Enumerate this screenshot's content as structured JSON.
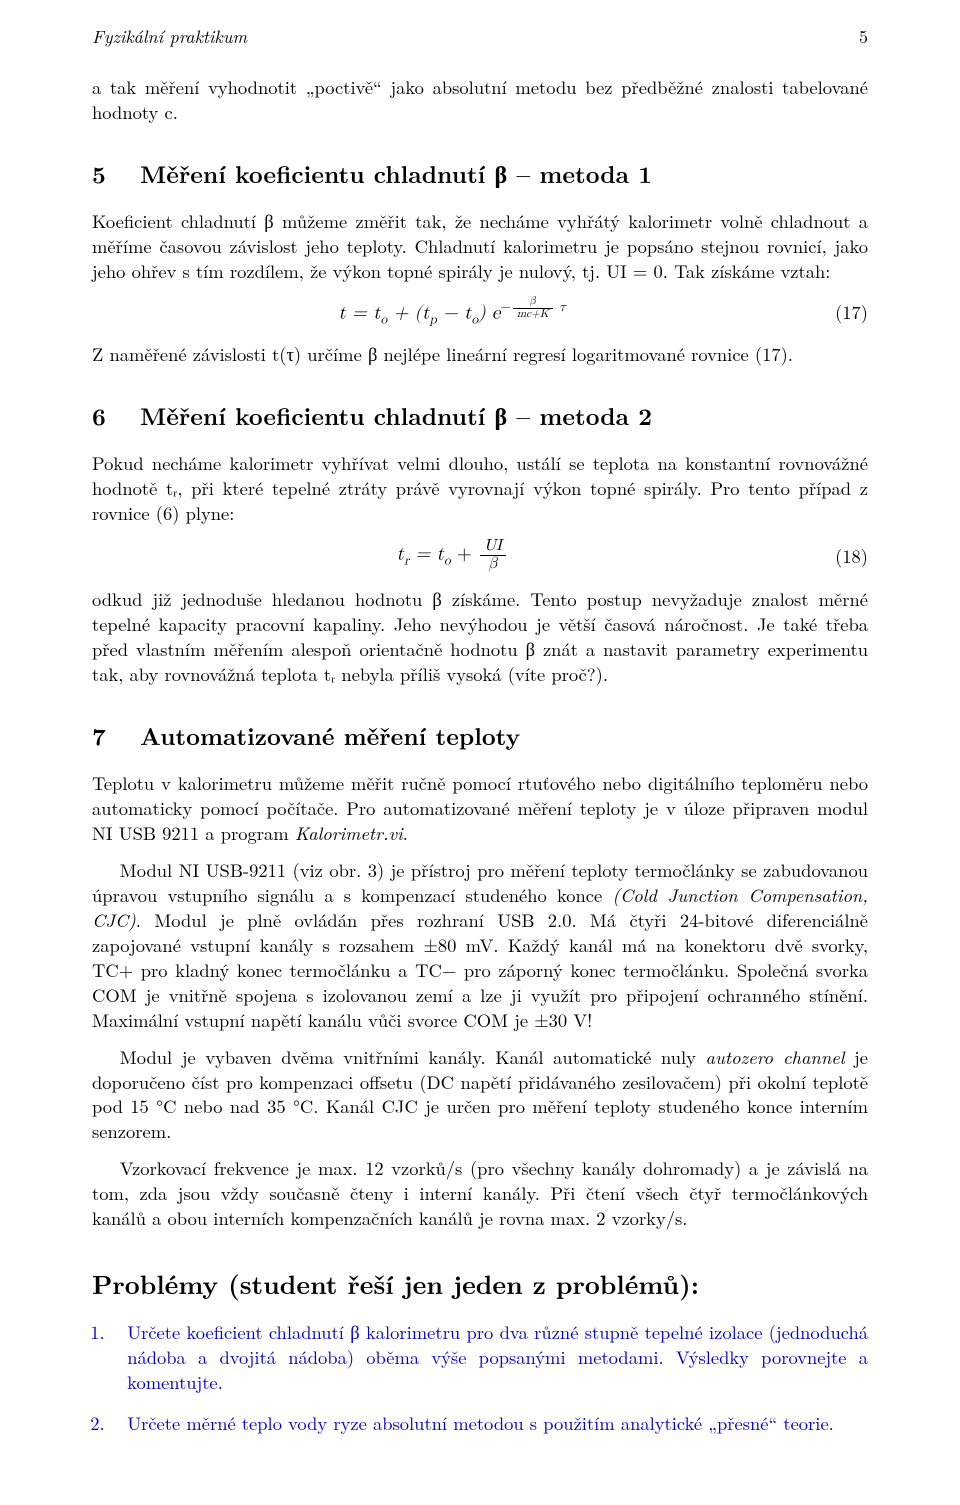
{
  "header": {
    "running_title": "Fyzikální praktikum",
    "page_number": "5"
  },
  "para_top": "a tak měření vyhodnotit „poctivě“ jako absolutní metodu bez předběžné znalosti tabelované hodnoty c.",
  "sec5": {
    "num": "5",
    "title": "Měření koeficientu chladnutí β – metoda 1",
    "p1": "Koeficient chladnutí β můžeme změřit tak, že necháme vyhřátý kalorimetr volně chladnout a měříme časovou závislost jeho teploty. Chladnutí kalorimetru je popsáno stejnou rovnicí, jako jeho ohřev s tím rozdílem, že výkon topné spirály je nulový, tj. UI = 0. Tak získáme vztah:",
    "eq17_label": "(17)",
    "eq17_lhs": "t = t",
    "eq17_sub1": "o",
    "eq17_mid1": " + (t",
    "eq17_sub2": "p",
    "eq17_mid2": " − t",
    "eq17_sub3": "o",
    "eq17_mid3": ") e",
    "eq17_exp_top": "β",
    "eq17_exp_bot": "mc+K",
    "eq17_exp_tail": " τ",
    "p2": "Z naměřené závislosti t(τ) určíme β nejlépe lineární regresí logaritmované rovnice (17)."
  },
  "sec6": {
    "num": "6",
    "title": "Měření koeficientu chladnutí β – metoda 2",
    "p1": "Pokud necháme kalorimetr vyhřívat velmi dlouho, ustálí se teplota na konstantní rovnovážné hodnotě tᵣ, při které tepelné ztráty právě vyrovnají výkon topné spirály. Pro tento případ z rovnice (6) plyne:",
    "eq18_label": "(18)",
    "eq18_lhs": "t",
    "eq18_sub1": "r",
    "eq18_mid1": " = t",
    "eq18_sub2": "o",
    "eq18_mid2": " + ",
    "eq18_frac_top": "UI",
    "eq18_frac_bot": "β",
    "p2": "odkud již jednoduše hledanou hodnotu β získáme. Tento postup nevyžaduje znalost měrné tepelné kapacity pracovní kapaliny. Jeho nevýhodou je větší časová náročnost. Je také třeba před vlastním měřením alespoň orientačně hodnotu β znát a nastavit parametry experimentu tak, aby rovnovážná teplota tᵣ nebyla příliš vysoká (víte proč?)."
  },
  "sec7": {
    "num": "7",
    "title": "Automatizované měření teploty",
    "p1a": "Teplotu v kalorimetru můžeme měřit ručně pomocí rtuťového nebo digitálního teploměru nebo automaticky pomocí počítače. Pro automatizované měření teploty je v úloze připraven modul NI USB 9211 a program ",
    "p1b_it": "Kalorimetr.vi",
    "p1c": ".",
    "p2a": "Modul NI USB-9211 (viz obr. 3) je přístroj pro měření teploty termočlánky se zabudovanou úpravou vstupního signálu a s kompenzací studeného konce ",
    "p2b_it": "(Cold Junction Compensation, CJC)",
    "p2c": ". Modul je plně ovládán přes rozhraní USB 2.0. Má čtyři 24-bitové diferenciálně zapojované vstupní kanály s rozsahem ±80 mV. Každý kanál má na konektoru dvě svorky, TC+ pro kladný konec termočlánku a TC− pro záporný konec termočlánku. Společná svorka COM je vnitřně spojena s izolovanou zemí a lze ji využít pro připojení ochranného stínění. Maximální vstupní napětí kanálu vůči svorce COM je ±30 V!",
    "p3a": "Modul je vybaven dvěma vnitřními kanály. Kanál automatické nuly ",
    "p3b_it": "autozero channel",
    "p3c": " je doporučeno číst pro kompenzaci offsetu (DC napětí přidávaného zesilovačem) při okolní teplotě pod 15 °C nebo nad 35 °C. Kanál CJC je určen pro měření teploty studeného konce interním senzorem.",
    "p4": "Vzorkovací frekvence je max. 12 vzorků/s (pro všechny kanály dohromady) a je závislá na tom, zda jsou vždy současně čteny i interní kanály. Při čtení všech čtyř termočlánkových kanálů a obou interních kompenzačních kanálů je rovna max. 2 vzorky/s."
  },
  "problems": {
    "title": "Problémy (student řeší jen jeden z problémů):",
    "items": [
      "Určete koeficient chladnutí β kalorimetru pro dva různé stupně tepelné izolace (jednoduchá nádoba a dvojitá nádoba) oběma výše popsanými metodami. Výsledky porovnejte a komentujte.",
      "Určete měrné teplo vody ryze absolutní metodou s použitím analytické „přesné“ teorie."
    ]
  },
  "colors": {
    "text": "#000000",
    "link": "#0000c4",
    "bg": "#ffffff"
  }
}
